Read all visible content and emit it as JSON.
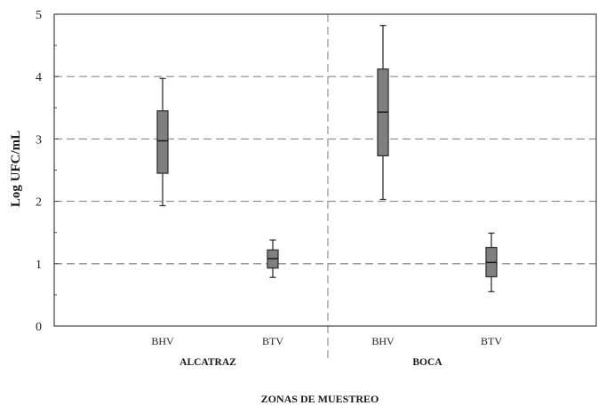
{
  "chart_data": {
    "type": "box",
    "ylabel": "Log UFC/mL",
    "xlabel": "ZONAS DE MUESTREO",
    "ylim": [
      0,
      5
    ],
    "yticks": [
      0,
      1,
      2,
      3,
      4,
      5
    ],
    "grid": "dashed horizontal at 1, 2, 3, 4",
    "groups": [
      "ALCATRAZ",
      "BOCA"
    ],
    "boxes": [
      {
        "group": "ALCATRAZ",
        "label": "BHV",
        "min": 1.93,
        "q1": 2.45,
        "median": 2.97,
        "q3": 3.45,
        "max": 3.97
      },
      {
        "group": "ALCATRAZ",
        "label": "BTV",
        "min": 0.78,
        "q1": 0.93,
        "median": 1.08,
        "q3": 1.22,
        "max": 1.38
      },
      {
        "group": "BOCA",
        "label": "BHV",
        "min": 2.03,
        "q1": 2.73,
        "median": 3.43,
        "q3": 4.12,
        "max": 4.82
      },
      {
        "group": "BOCA",
        "label": "BTV",
        "min": 0.55,
        "q1": 0.79,
        "median": 1.02,
        "q3": 1.26,
        "max": 1.49
      }
    ],
    "colors": {
      "box_fill": "#808080",
      "line": "#333333",
      "grid": "#8a8a8a"
    }
  }
}
